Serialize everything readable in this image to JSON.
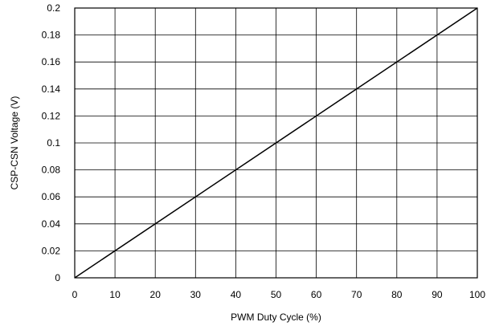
{
  "chart_data": {
    "type": "line",
    "title": "",
    "xlabel": "PWM Duty Cycle (%)",
    "ylabel": "CSP-CSN Voltage (V)",
    "xlim": [
      0,
      100
    ],
    "ylim": [
      0,
      0.2
    ],
    "x_ticks": [
      0,
      10,
      20,
      30,
      40,
      50,
      60,
      70,
      80,
      90,
      100
    ],
    "y_ticks": [
      0,
      0.02,
      0.04,
      0.06,
      0.08,
      0.1,
      0.12,
      0.14,
      0.16,
      0.18,
      0.2
    ],
    "x_tick_labels": [
      "0",
      "10",
      "20",
      "30",
      "40",
      "50",
      "60",
      "70",
      "80",
      "90",
      "100"
    ],
    "y_tick_labels": [
      "0",
      "0.02",
      "0.04",
      "0.06",
      "0.08",
      "0.1",
      "0.12",
      "0.14",
      "0.16",
      "0.18",
      "0.2"
    ],
    "grid": true,
    "series": [
      {
        "x": [
          0,
          100
        ],
        "y": [
          0,
          0.2
        ],
        "color": "#000000"
      }
    ]
  }
}
